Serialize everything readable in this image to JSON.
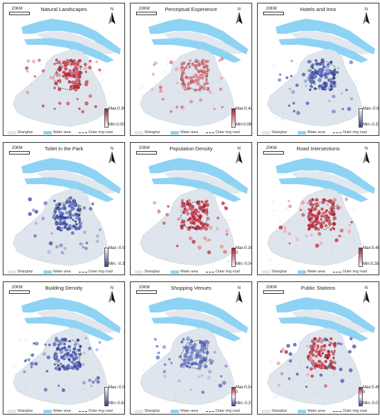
{
  "common": {
    "scale_label": "20KM",
    "north_label": "N",
    "legend_shanghai": "Shanghai",
    "legend_water": "Water area",
    "legend_ring": "Outer ring road",
    "colors": {
      "land": "#dfe5ec",
      "water": "#8fd3f4",
      "ring": "#333333"
    }
  },
  "panels": [
    {
      "title": "Natural Landscapes",
      "max": "Max:0.36",
      "min": "Min:0.00",
      "zero": "",
      "scheme": "red",
      "ramp": [
        "#b2182b",
        "#ffffff"
      ]
    },
    {
      "title": "Perceptual Experience",
      "max": "Max:0.42",
      "min": "Min:0.08",
      "zero": "",
      "scheme": "red-light",
      "ramp": [
        "#b2182b",
        "#ffffff"
      ]
    },
    {
      "title": "Hotels and Inns",
      "max": "Max:-0.01",
      "min": "Min:-0.33",
      "zero": "",
      "scheme": "blue",
      "ramp": [
        "#ffffff",
        "#2c3e9f"
      ]
    },
    {
      "title": "Toilet in the Park",
      "max": "Max:-0.01",
      "min": "Min: -0.32",
      "zero": "",
      "scheme": "blue",
      "ramp": [
        "#ffffff",
        "#2c3e9f"
      ]
    },
    {
      "title": "Population Density",
      "max": "Max:0.38",
      "min": "Min:-0.04",
      "zero": "0",
      "scheme": "red",
      "ramp": [
        "#b2182b",
        "#ffffff"
      ]
    },
    {
      "title": "Road Intersections",
      "max": "Max:0.48",
      "min": "Min:0.28",
      "zero": "",
      "scheme": "red",
      "ramp": [
        "#b2182b",
        "#ffffff"
      ]
    },
    {
      "title": "Building Density",
      "max": "Max:-0.02",
      "min": "Min:-0.82",
      "zero": "",
      "scheme": "blue",
      "ramp": [
        "#ffffff",
        "#2c3e9f"
      ]
    },
    {
      "title": "Shopping Venues",
      "max": "Max:0.04",
      "min": "Min:-0.37",
      "zero": "0",
      "scheme": "blue-light",
      "ramp": [
        "#b2182b",
        "#ffffff",
        "#2c3e9f"
      ]
    },
    {
      "title": "Public Stations",
      "max": "Max:0.49",
      "min": "Min:-0.07",
      "zero": "0",
      "scheme": "red-mixed",
      "ramp": [
        "#b2182b",
        "#ffffff",
        "#2c3e9f"
      ]
    }
  ]
}
